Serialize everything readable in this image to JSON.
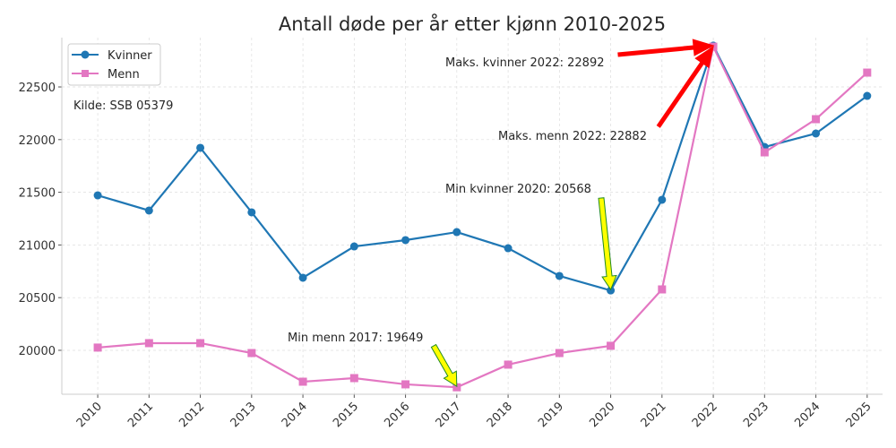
{
  "chart_data": {
    "type": "line",
    "title": "Antall døde per år etter kjønn 2010-2025",
    "xlabel": "",
    "ylabel": "",
    "x": [
      2010,
      2011,
      2012,
      2013,
      2014,
      2015,
      2016,
      2017,
      2018,
      2019,
      2020,
      2021,
      2022,
      2023,
      2024,
      2025
    ],
    "xlim": [
      2009.3,
      2025.3
    ],
    "ylim": [
      19583,
      22968
    ],
    "yticks": [
      20000,
      20500,
      21000,
      21500,
      22000,
      22500
    ],
    "grid": true,
    "legend_position": "top-left",
    "series": [
      {
        "name": "Kvinner",
        "color": "#1f77b4",
        "marker": "circle",
        "values": [
          21471,
          21327,
          21922,
          21310,
          20689,
          20986,
          21046,
          21122,
          20969,
          20706,
          20568,
          21429,
          22892,
          21930,
          22058,
          22415
        ]
      },
      {
        "name": "Menn",
        "color": "#e377c2",
        "marker": "square",
        "values": [
          20026,
          20068,
          20068,
          19974,
          19702,
          19736,
          19677,
          19649,
          19864,
          19974,
          20043,
          20578,
          22882,
          21879,
          22194,
          22636
        ]
      }
    ],
    "source_note": "Kilde: SSB 05379",
    "annotations": [
      {
        "text": "Maks. kvinner 2022: 22892",
        "x": 2022,
        "y": 22892,
        "arrow_color": "#ff0000"
      },
      {
        "text": "Maks. menn 2022: 22882",
        "x": 2022,
        "y": 22882,
        "arrow_color": "#ff0000"
      },
      {
        "text": "Min kvinner 2020: 20568",
        "x": 2020,
        "y": 20568,
        "arrow_color": "#ffff00"
      },
      {
        "text": "Min menn 2017: 19649",
        "x": 2017,
        "y": 19649,
        "arrow_color": "#ffff00"
      }
    ]
  }
}
